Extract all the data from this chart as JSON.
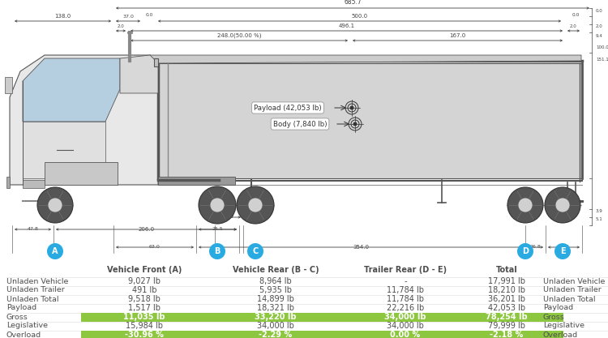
{
  "bg_color": "#ffffff",
  "payload_label": "Payload (42,053 lb)",
  "body_label": "Body (7,840 lb)",
  "font_color": "#4d4d4d",
  "highlight_text_color": "#ffffff",
  "highlight_color": "#8dc63f",
  "axle_color": "#29abe2",
  "dim_color": "#444444",
  "table_rows": [
    {
      "label": "Unladen Vehicle",
      "values": [
        "9,027 lb",
        "8,964 lb",
        "-",
        "17,991 lb"
      ],
      "highlight": false
    },
    {
      "label": "Unladen Trailer",
      "values": [
        "491 lb",
        "5,935 lb",
        "11,784 lb",
        "18,210 lb"
      ],
      "highlight": false
    },
    {
      "label": "Unladen Total",
      "values": [
        "9,518 lb",
        "14,899 lb",
        "11,784 lb",
        "36,201 lb"
      ],
      "highlight": false
    },
    {
      "label": "Payload",
      "values": [
        "1,517 lb",
        "18,321 lb",
        "22,216 lb",
        "42,053 lb"
      ],
      "highlight": false
    },
    {
      "label": "Gross",
      "values": [
        "11,035 lb",
        "33,220 lb",
        "34,000 lb",
        "78,254 lb"
      ],
      "highlight": true
    },
    {
      "label": "Legislative",
      "values": [
        "15,984 lb",
        "34,000 lb",
        "34,000 lb",
        "79,999 lb"
      ],
      "highlight": false
    },
    {
      "label": "Overload",
      "values": [
        "-30.96 %",
        "-2.29 %",
        "0.00 %",
        "-2.18 %"
      ],
      "highlight": true
    }
  ]
}
